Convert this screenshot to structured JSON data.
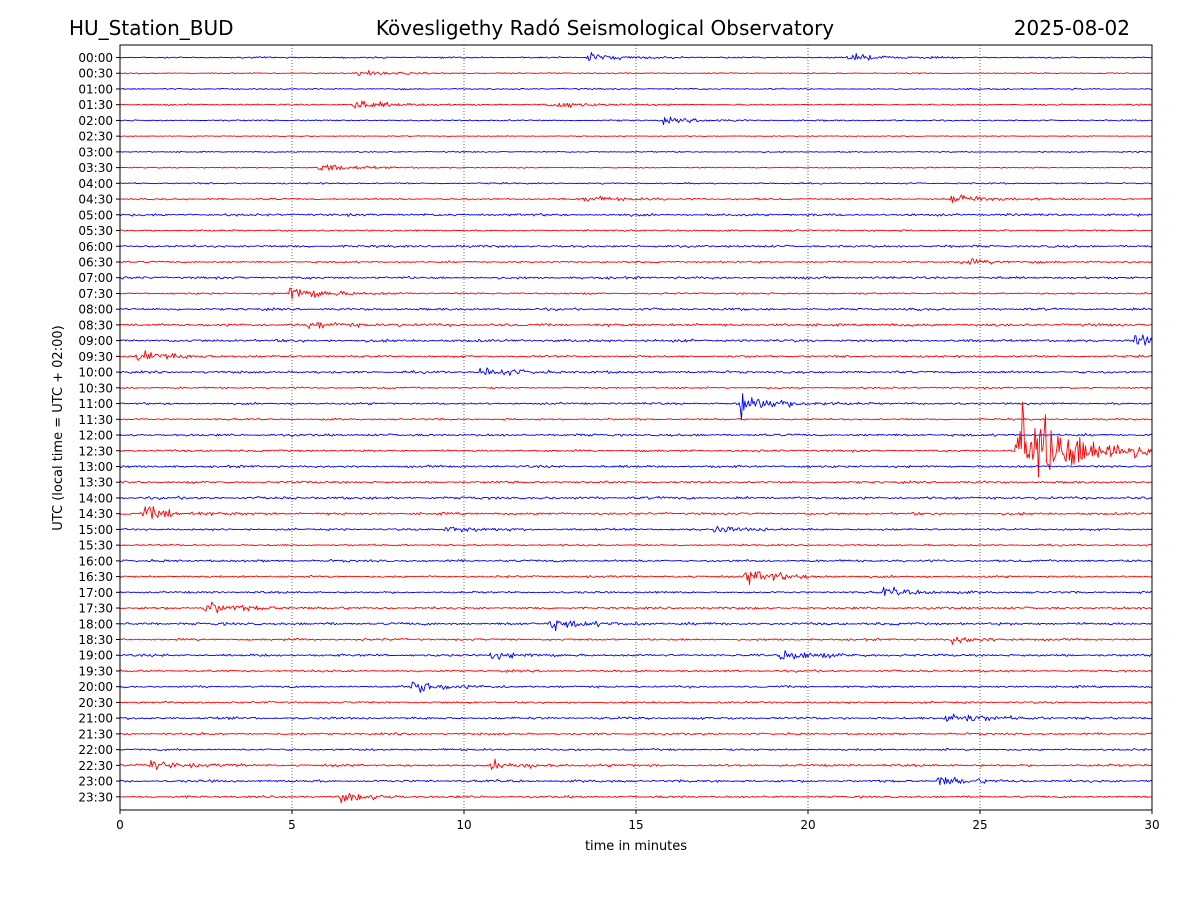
{
  "header": {
    "station": "HU_Station_BUD",
    "observatory": "Kövesligethy Radó Seismological Observatory",
    "date": "2025-08-02"
  },
  "chart_data": {
    "type": "line",
    "title": "Kövesligethy Radó Seismological Observatory",
    "xlabel": "time in minutes",
    "ylabel": "UTC (local time = UTC + 02:00)",
    "xlim": [
      0,
      30
    ],
    "x_ticks": [
      "0",
      "5",
      "10",
      "15",
      "20",
      "25",
      "30"
    ],
    "x_grid": "dotted",
    "trace_colors": [
      "#0000ff",
      "#ff0000"
    ],
    "rows": [
      "00:00",
      "00:30",
      "01:00",
      "01:30",
      "02:00",
      "02:30",
      "03:00",
      "03:30",
      "04:00",
      "04:30",
      "05:00",
      "05:30",
      "06:00",
      "06:30",
      "07:00",
      "07:30",
      "08:00",
      "08:30",
      "09:00",
      "09:30",
      "10:00",
      "10:30",
      "11:00",
      "11:30",
      "12:00",
      "12:30",
      "13:00",
      "13:30",
      "14:00",
      "14:30",
      "15:00",
      "15:30",
      "16:00",
      "16:30",
      "17:00",
      "17:30",
      "18:00",
      "18:30",
      "19:00",
      "19:30",
      "20:00",
      "20:30",
      "21:00",
      "21:30",
      "22:00",
      "22:30",
      "23:00",
      "23:30"
    ],
    "noise_level": [
      0.5,
      0.4,
      0.5,
      0.5,
      0.5,
      0.3,
      0.4,
      0.4,
      0.5,
      0.6,
      0.8,
      0.6,
      0.8,
      0.6,
      0.8,
      0.6,
      0.8,
      0.9,
      0.9,
      0.7,
      0.8,
      0.6,
      0.7,
      0.6,
      0.8,
      0.7,
      0.8,
      0.8,
      0.9,
      0.8,
      0.7,
      0.6,
      0.8,
      0.7,
      0.7,
      0.8,
      0.9,
      0.7,
      0.8,
      0.7,
      0.7,
      0.7,
      0.8,
      0.7,
      0.7,
      0.8,
      0.8,
      0.7
    ],
    "events": [
      {
        "row": "00:00",
        "minute": 13.6,
        "amplitude": 6
      },
      {
        "row": "00:00",
        "minute": 21.2,
        "amplitude": 5
      },
      {
        "row": "00:30",
        "minute": 6.9,
        "amplitude": 4
      },
      {
        "row": "01:30",
        "minute": 6.8,
        "amplitude": 7
      },
      {
        "row": "01:30",
        "minute": 12.5,
        "amplitude": 5
      },
      {
        "row": "02:00",
        "minute": 15.8,
        "amplitude": 4
      },
      {
        "row": "03:30",
        "minute": 5.8,
        "amplitude": 6
      },
      {
        "row": "04:30",
        "minute": 13.5,
        "amplitude": 5
      },
      {
        "row": "04:30",
        "minute": 24.2,
        "amplitude": 8
      },
      {
        "row": "06:30",
        "minute": 24.4,
        "amplitude": 5
      },
      {
        "row": "07:30",
        "minute": 4.95,
        "amplitude": 12
      },
      {
        "row": "08:30",
        "minute": 5.5,
        "amplitude": 5
      },
      {
        "row": "09:00",
        "minute": 29.5,
        "amplitude": 9
      },
      {
        "row": "09:30",
        "minute": 0.5,
        "amplitude": 10
      },
      {
        "row": "10:00",
        "minute": 10.5,
        "amplitude": 7
      },
      {
        "row": "11:00",
        "minute": 18.0,
        "amplitude": 18
      },
      {
        "row": "12:30",
        "minute": 26.1,
        "amplitude": 70
      },
      {
        "row": "14:30",
        "minute": 0.7,
        "amplitude": 9
      },
      {
        "row": "15:00",
        "minute": 9.5,
        "amplitude": 5
      },
      {
        "row": "15:00",
        "minute": 17.2,
        "amplitude": 5
      },
      {
        "row": "16:30",
        "minute": 18.2,
        "amplitude": 11
      },
      {
        "row": "17:00",
        "minute": 22.2,
        "amplitude": 6
      },
      {
        "row": "17:30",
        "minute": 2.5,
        "amplitude": 9
      },
      {
        "row": "18:00",
        "minute": 12.5,
        "amplitude": 8
      },
      {
        "row": "18:30",
        "minute": 24.2,
        "amplitude": 5
      },
      {
        "row": "19:00",
        "minute": 10.8,
        "amplitude": 5
      },
      {
        "row": "19:00",
        "minute": 19.2,
        "amplitude": 8
      },
      {
        "row": "20:00",
        "minute": 8.5,
        "amplitude": 9
      },
      {
        "row": "21:00",
        "minute": 24.0,
        "amplitude": 9
      },
      {
        "row": "22:30",
        "minute": 0.9,
        "amplitude": 6
      },
      {
        "row": "22:30",
        "minute": 10.8,
        "amplitude": 6
      },
      {
        "row": "23:00",
        "minute": 23.8,
        "amplitude": 7
      },
      {
        "row": "23:30",
        "minute": 6.4,
        "amplitude": 7
      }
    ]
  }
}
